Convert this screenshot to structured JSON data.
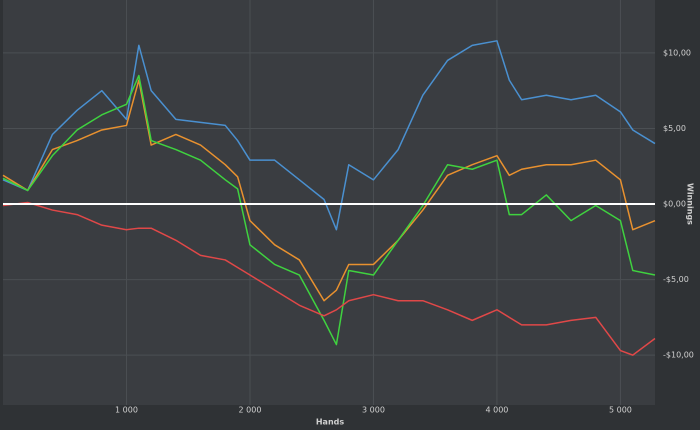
{
  "chart_data": {
    "type": "line",
    "x_label": "Hands",
    "y_label": "Winnings",
    "x": [
      0,
      200,
      400,
      600,
      800,
      1000,
      1100,
      1200,
      1400,
      1600,
      1800,
      1900,
      2000,
      2200,
      2400,
      2600,
      2700,
      2800,
      3000,
      3200,
      3400,
      3600,
      3800,
      4000,
      4100,
      4200,
      4400,
      4600,
      4800,
      5000,
      5100,
      5280
    ],
    "series": [
      {
        "color": "#4a90d0",
        "values": [
          1.6,
          0.9,
          4.6,
          6.2,
          7.5,
          5.6,
          10.5,
          7.5,
          5.6,
          5.4,
          5.2,
          4.2,
          2.9,
          2.9,
          1.6,
          0.3,
          -1.7,
          2.6,
          1.6,
          3.6,
          7.2,
          9.5,
          10.5,
          10.8,
          8.2,
          6.9,
          7.2,
          6.9,
          7.2,
          6.1,
          4.9,
          4.0
        ]
      },
      {
        "color": "#e8912f",
        "values": [
          1.9,
          0.9,
          3.6,
          4.2,
          4.9,
          5.2,
          8.2,
          3.9,
          4.6,
          3.9,
          2.6,
          1.8,
          -1.1,
          -2.7,
          -3.7,
          -6.4,
          -5.7,
          -4.0,
          -4.0,
          -2.4,
          -0.4,
          1.9,
          2.6,
          3.2,
          1.9,
          2.3,
          2.6,
          2.6,
          2.9,
          1.6,
          -1.7,
          -1.1
        ]
      },
      {
        "color": "#3fd23f",
        "values": [
          1.7,
          0.9,
          3.2,
          4.9,
          5.9,
          6.6,
          8.5,
          4.2,
          3.6,
          2.9,
          1.6,
          1.0,
          -2.7,
          -4.0,
          -4.7,
          -7.7,
          -9.3,
          -4.4,
          -4.7,
          -2.4,
          -0.1,
          2.6,
          2.3,
          2.9,
          -0.7,
          -0.7,
          0.6,
          -1.1,
          -0.1,
          -1.1,
          -4.4,
          -4.7
        ]
      },
      {
        "color": "#e04848",
        "values": [
          -0.1,
          0.1,
          -0.4,
          -0.7,
          -1.4,
          -1.7,
          -1.6,
          -1.6,
          -2.4,
          -3.4,
          -3.7,
          -4.2,
          -4.7,
          -5.7,
          -6.7,
          -7.4,
          -7.0,
          -6.4,
          -6.0,
          -6.4,
          -6.4,
          -7.0,
          -7.7,
          -7.0,
          -7.5,
          -8.0,
          -8.0,
          -7.7,
          -7.5,
          -9.7,
          -10.0,
          -8.9
        ]
      }
    ],
    "xlim": [
      0,
      5280
    ],
    "ylim": [
      -13.3,
      13.5
    ],
    "xticks": [
      {
        "value": 1000,
        "label": "1 000"
      },
      {
        "value": 2000,
        "label": "2 000"
      },
      {
        "value": 3000,
        "label": "3 000"
      },
      {
        "value": 4000,
        "label": "4 000"
      },
      {
        "value": 5000,
        "label": "5 000"
      }
    ],
    "yticks": [
      {
        "value": 10,
        "label": "$10,00"
      },
      {
        "value": 5,
        "label": "$5,00"
      },
      {
        "value": 0,
        "label": "$0,00"
      },
      {
        "value": -5,
        "label": "-$5,00"
      },
      {
        "value": -10,
        "label": "-$10,00"
      }
    ],
    "grid": true,
    "zero_line": true
  }
}
